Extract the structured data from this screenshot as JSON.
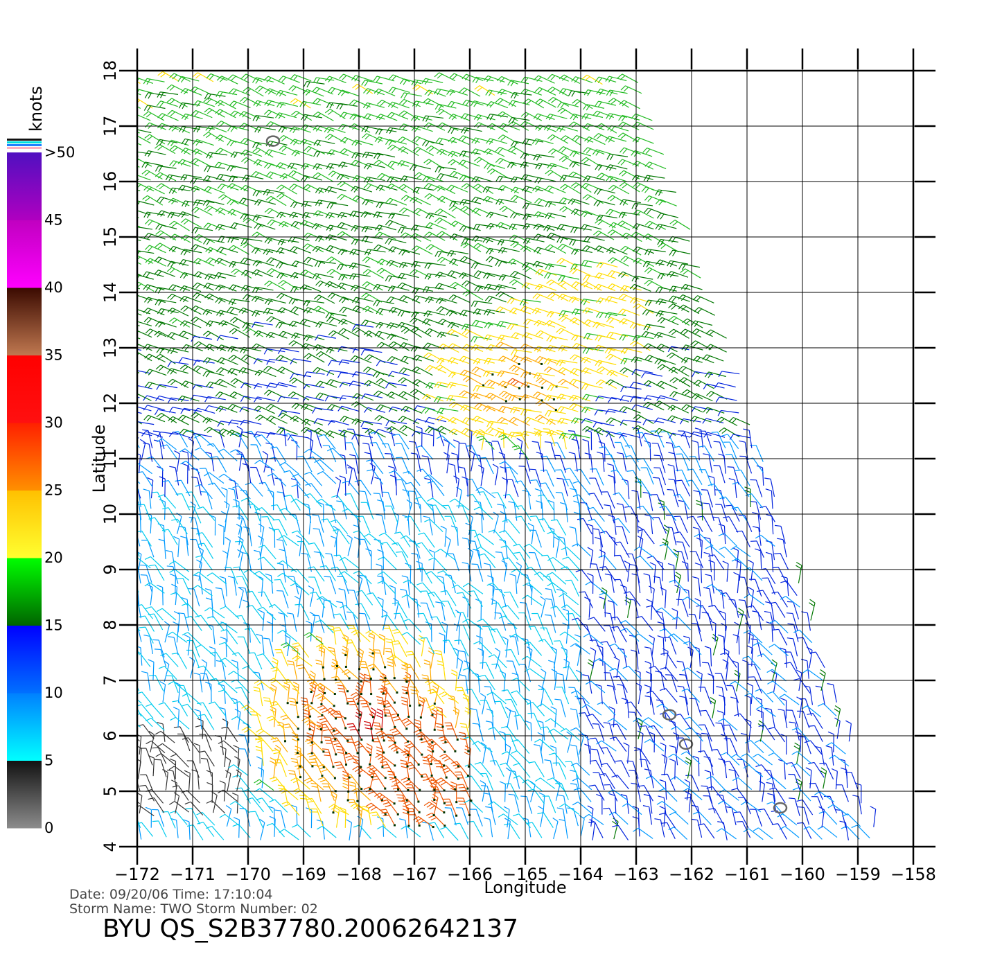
{
  "legend": {
    "unit": "knots",
    "labels": [
      ">50",
      "45",
      "40",
      "35",
      "30",
      "25",
      "20",
      "15",
      "10",
      "5",
      "0"
    ],
    "bands": [
      {
        "from": 0,
        "to": 5,
        "colors": [
          "#8c8c8c",
          "#111111"
        ]
      },
      {
        "from": 5,
        "to": 10,
        "colors": [
          "#00ffff",
          "#0080ff"
        ]
      },
      {
        "from": 10,
        "to": 15,
        "colors": [
          "#0070ff",
          "#0000ff"
        ]
      },
      {
        "from": 15,
        "to": 20,
        "colors": [
          "#006400",
          "#00ff00"
        ]
      },
      {
        "from": 20,
        "to": 25,
        "colors": [
          "#ffff30",
          "#ffc000"
        ]
      },
      {
        "from": 25,
        "to": 30,
        "colors": [
          "#ff9000",
          "#ff2000"
        ]
      },
      {
        "from": 30,
        "to": 35,
        "colors": [
          "#ff1010",
          "#ff0000"
        ]
      },
      {
        "from": 35,
        "to": 40,
        "colors": [
          "#c07850",
          "#3a0a00"
        ]
      },
      {
        "from": 40,
        "to": 45,
        "colors": [
          "#ff00ff",
          "#c000c0"
        ]
      },
      {
        "from": 45,
        "to": 50,
        "colors": [
          "#b000c0",
          "#5010c0"
        ]
      }
    ]
  },
  "axes": {
    "x_title": "Longitude",
    "y_title": "Latitude",
    "x_ticks": [
      "−172",
      "−171",
      "−170",
      "−169",
      "−168",
      "−167",
      "−166",
      "−165",
      "−164",
      "−163",
      "−162",
      "−161",
      "−160",
      "−159",
      "−158"
    ],
    "y_ticks": [
      "4",
      "5",
      "6",
      "7",
      "8",
      "9",
      "10",
      "11",
      "12",
      "13",
      "14",
      "15",
      "16",
      "17",
      "18"
    ],
    "lon_range": [
      -172,
      -158
    ],
    "lat_range": [
      4,
      18
    ]
  },
  "meta": {
    "date_line": "Date: 09/20/06   Time: 17:10:04",
    "storm_line": "Storm  Name: TWO    Storm  Number: 02",
    "product": "BYU  QS_S2B37780.20062642137"
  },
  "islands": [
    {
      "lon": -169.55,
      "lat": 16.73
    },
    {
      "lon": -162.4,
      "lat": 6.38
    },
    {
      "lon": -162.1,
      "lat": 5.85
    },
    {
      "lon": -160.4,
      "lat": 4.7
    }
  ]
}
